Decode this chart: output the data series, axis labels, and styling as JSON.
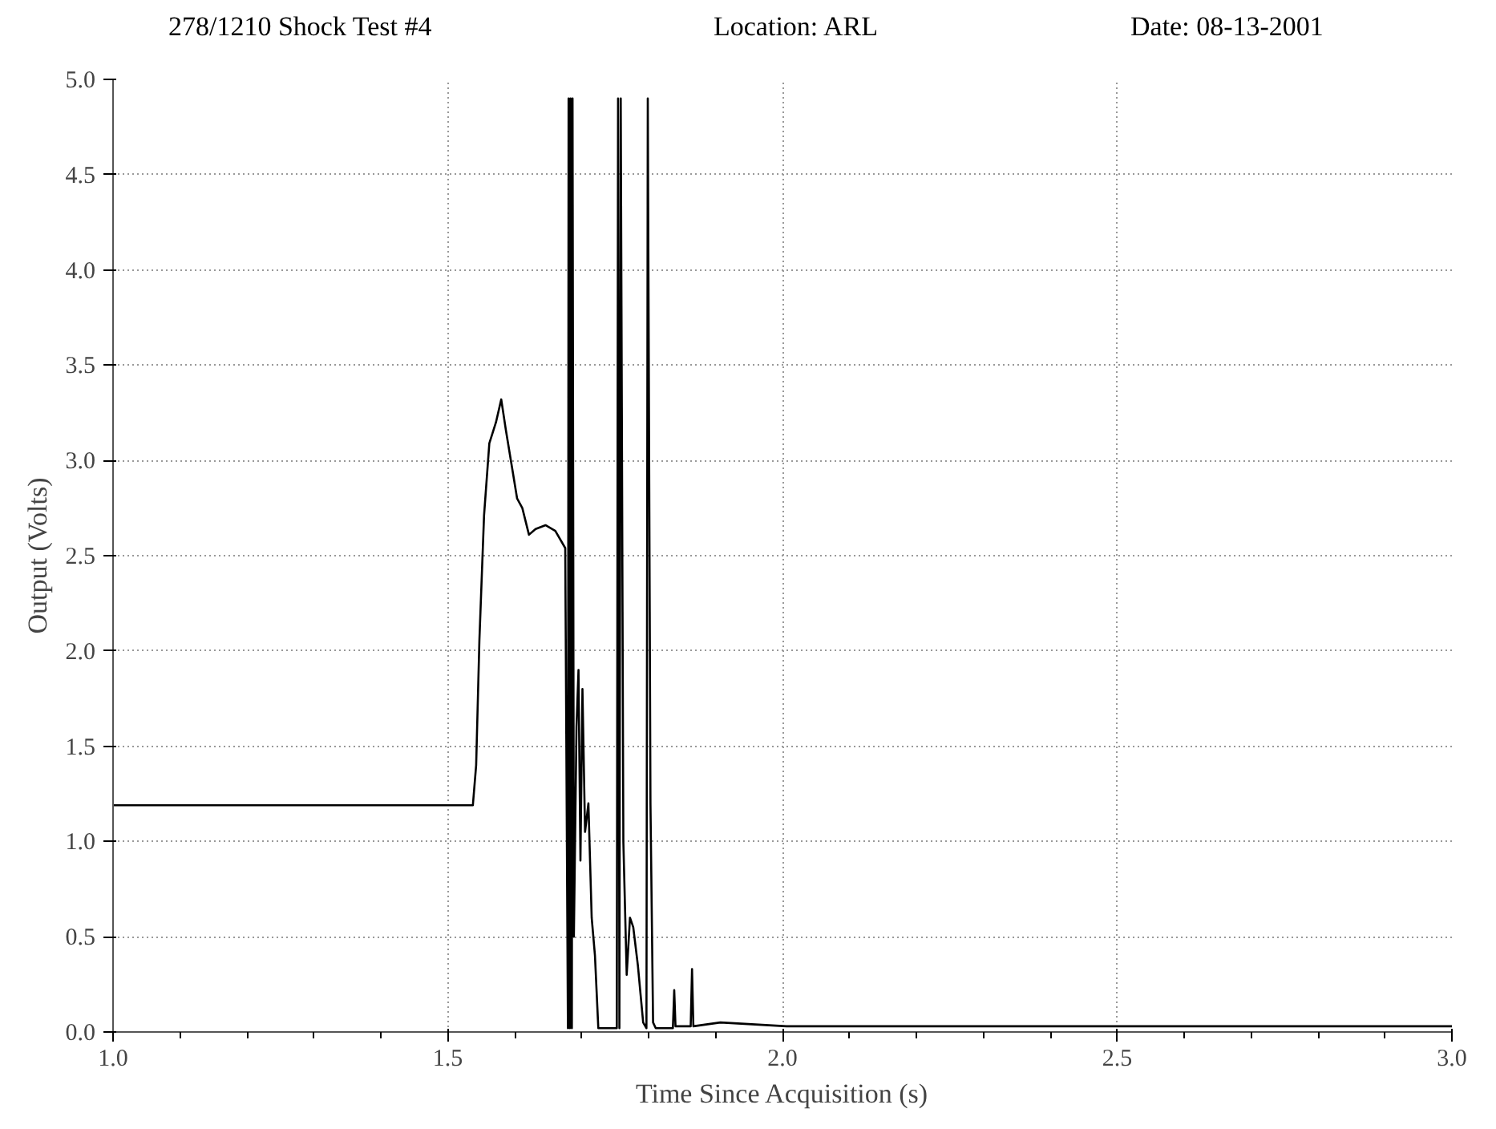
{
  "chart_data": {
    "type": "line",
    "title": "278/1210 Shock Test #4",
    "annotations": [
      "Location: ARL",
      "Date: 08-13-2001"
    ],
    "xlabel": "Time Since Acquisition (s)",
    "ylabel": "Output (Volts)",
    "xlim": [
      1.0,
      3.0
    ],
    "ylim": [
      0.0,
      5.0
    ],
    "xticks": [
      {
        "value": 1.0,
        "label": "1.0"
      },
      1.5,
      {
        "value": 2.0,
        "label": "2.0"
      },
      2.5,
      {
        "value": 3.0,
        "label": "3.0"
      }
    ],
    "yticks": [
      {
        "value": 0,
        "label": "0.0"
      },
      0.5,
      {
        "value": 1,
        "label": "1.0"
      },
      1.5,
      {
        "value": 2,
        "label": "2.0"
      },
      2.5,
      {
        "value": 3,
        "label": "3.0"
      },
      3.5,
      {
        "value": 4,
        "label": "4.0"
      },
      4.5,
      {
        "value": 5,
        "label": "5.0"
      }
    ],
    "grid": true,
    "line_style": "solid",
    "series": [
      {
        "color": "#000000",
        "x": [
          1.0,
          1.5375,
          1.5424,
          1.5473,
          1.5542,
          1.5621,
          1.572,
          1.5799,
          1.5868,
          1.5966,
          1.6036,
          1.6114,
          1.6213,
          1.6312,
          1.646,
          1.6607,
          1.6755,
          1.6795,
          1.6805,
          1.6824,
          1.6834,
          1.6854,
          1.6864,
          1.6884,
          1.6923,
          1.6953,
          1.6982,
          1.7012,
          1.7051,
          1.7101,
          1.715,
          1.7199,
          1.7249,
          1.7525,
          1.7544,
          1.7564,
          1.7584,
          1.7623,
          1.7673,
          1.7722,
          1.7771,
          1.784,
          1.7919,
          1.7968,
          1.7988,
          1.8028,
          1.8067,
          1.8107,
          1.8363,
          1.8383,
          1.8402,
          1.8629,
          1.8649,
          1.8669,
          1.9073,
          2.006,
          3.0
        ],
        "values": [
          1.19,
          1.19,
          1.4,
          2.06,
          2.71,
          3.09,
          3.2,
          3.32,
          3.16,
          2.95,
          2.8,
          2.75,
          2.61,
          2.64,
          2.66,
          2.63,
          2.54,
          0.02,
          4.9,
          0.02,
          4.9,
          0.02,
          4.9,
          0.5,
          1.6,
          1.9,
          0.9,
          1.8,
          1.05,
          1.2,
          0.6,
          0.4,
          0.02,
          0.02,
          4.9,
          0.02,
          4.9,
          1.0,
          0.3,
          0.6,
          0.55,
          0.35,
          0.05,
          0.02,
          4.9,
          1.2,
          0.05,
          0.02,
          0.02,
          0.22,
          0.03,
          0.03,
          0.33,
          0.03,
          0.05,
          0.03,
          0.03
        ]
      }
    ]
  }
}
